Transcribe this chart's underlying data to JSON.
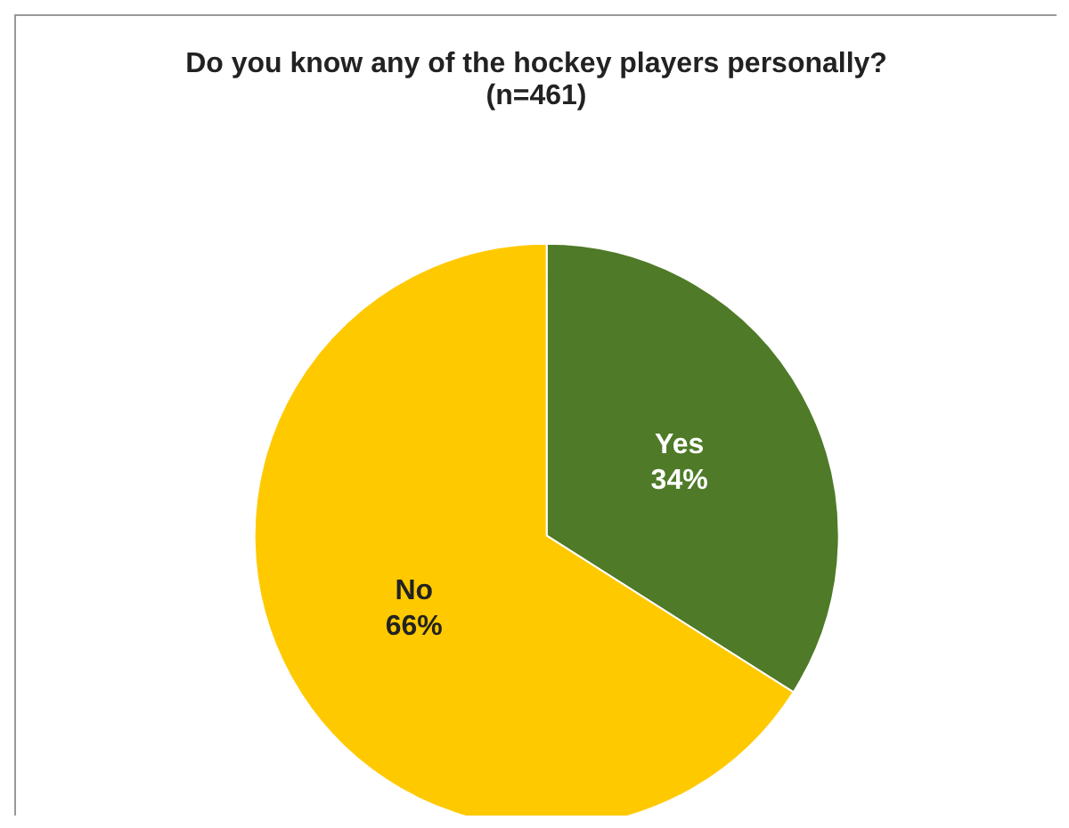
{
  "chart_data": {
    "type": "pie",
    "title": "Do you know any of the hockey players personally?",
    "subtitle": "(n=461)",
    "categories": [
      "Yes",
      "No"
    ],
    "values": [
      34,
      66
    ],
    "colors": [
      "#4f7a28",
      "#ffc900"
    ],
    "value_labels": [
      "34%",
      "66%"
    ],
    "legend": false
  }
}
